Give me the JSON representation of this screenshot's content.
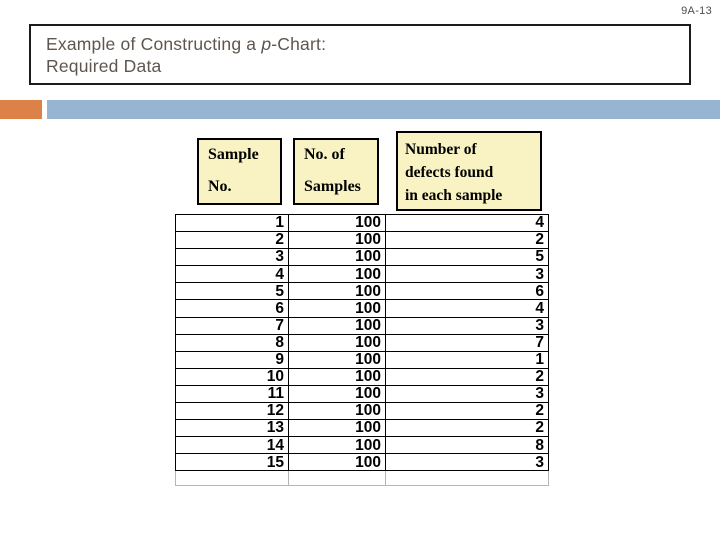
{
  "slide_number": "9A-13",
  "title": {
    "line1_prefix": "Example of Constructing a ",
    "line1_italic": "p",
    "line1_suffix": "-Chart:",
    "line2": "Required Data"
  },
  "colors": {
    "accent_orange": "#dc8147",
    "accent_blue": "#95b5d3",
    "header_box_fill": "#f9f2c2",
    "title_text": "#5e564e"
  },
  "table": {
    "headers": [
      {
        "lines": [
          "Sample",
          "No."
        ]
      },
      {
        "lines": [
          "No. of",
          "Samples"
        ]
      },
      {
        "lines": [
          "Number of",
          "defects found",
          "in each sample"
        ]
      }
    ],
    "rows": [
      [
        1,
        100,
        4
      ],
      [
        2,
        100,
        2
      ],
      [
        3,
        100,
        5
      ],
      [
        4,
        100,
        3
      ],
      [
        5,
        100,
        6
      ],
      [
        6,
        100,
        4
      ],
      [
        7,
        100,
        3
      ],
      [
        8,
        100,
        7
      ],
      [
        9,
        100,
        1
      ],
      [
        10,
        100,
        2
      ],
      [
        11,
        100,
        3
      ],
      [
        12,
        100,
        2
      ],
      [
        13,
        100,
        2
      ],
      [
        14,
        100,
        8
      ],
      [
        15,
        100,
        3
      ]
    ]
  }
}
